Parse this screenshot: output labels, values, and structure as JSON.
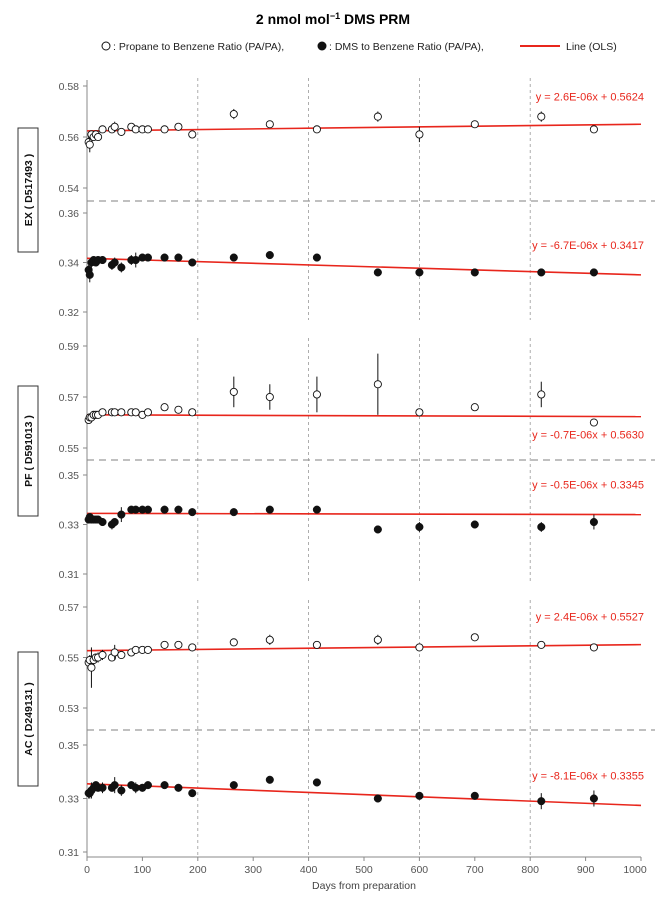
{
  "title_main": "2 nmol mol",
  "title_sup": "−1",
  "title_rest": " DMS PRM",
  "legend": {
    "open_label": ": Propane to Benzene Ratio (PA/PA),",
    "filled_label": ": DMS to Benzene Ratio (PA/PA),",
    "line_label": "Line (OLS)"
  },
  "colors": {
    "fit": "#e8261c",
    "axis": "#888888",
    "grid": "#999999",
    "marker": "#111111"
  },
  "xlabel": "Days from preparation",
  "x_ticks": [
    "0",
    "100",
    "200",
    "300",
    "400",
    "500",
    "600",
    "700",
    "800",
    "900",
    "1000"
  ],
  "chart_data": {
    "type": "scatter",
    "xlim": [
      0,
      1000
    ],
    "x_gridlines": [
      200,
      400,
      600,
      800
    ],
    "groups": [
      {
        "label": "EX ( D517493 )",
        "upper": {
          "marker": "open",
          "ylim": [
            0.54,
            0.58
          ],
          "yticks": [
            "0.58",
            "0.56",
            "0.54"
          ],
          "equation": "y = 2.6E-06x + 0.5624",
          "fit": {
            "slope": 2.6e-06,
            "intercept": 0.5624
          },
          "points": [
            [
              3,
              0.558
            ],
            [
              5,
              0.557
            ],
            [
              8,
              0.561
            ],
            [
              12,
              0.56
            ],
            [
              16,
              0.561
            ],
            [
              20,
              0.56
            ],
            [
              28,
              0.563
            ],
            [
              45,
              0.563
            ],
            [
              50,
              0.564
            ],
            [
              62,
              0.562
            ],
            [
              80,
              0.564
            ],
            [
              88,
              0.563
            ],
            [
              100,
              0.563
            ],
            [
              110,
              0.563
            ],
            [
              140,
              0.563
            ],
            [
              165,
              0.564
            ],
            [
              190,
              0.561
            ],
            [
              265,
              0.569
            ],
            [
              330,
              0.565
            ],
            [
              415,
              0.563
            ],
            [
              525,
              0.568
            ],
            [
              600,
              0.561
            ],
            [
              700,
              0.565
            ],
            [
              820,
              0.568
            ],
            [
              915,
              0.563
            ]
          ],
          "errors": [
            0.002,
            0.003,
            0.001,
            0.001,
            0.001,
            0.001,
            0.001,
            0.001,
            0.002,
            0.001,
            0.001,
            0.001,
            0.001,
            0.001,
            0.001,
            0.001,
            0.001,
            0.002,
            0.001,
            0.001,
            0.002,
            0.003,
            0.001,
            0.002,
            0.001
          ]
        },
        "lower": {
          "marker": "filled",
          "ylim": [
            0.32,
            0.36
          ],
          "yticks": [
            "0.36",
            "0.34",
            "0.32"
          ],
          "equation": "y = -6.7E-06x + 0.3417",
          "fit": {
            "slope": -6.7e-06,
            "intercept": 0.3417
          },
          "points": [
            [
              3,
              0.337
            ],
            [
              5,
              0.335
            ],
            [
              8,
              0.34
            ],
            [
              12,
              0.341
            ],
            [
              16,
              0.34
            ],
            [
              20,
              0.341
            ],
            [
              28,
              0.341
            ],
            [
              45,
              0.339
            ],
            [
              50,
              0.34
            ],
            [
              62,
              0.338
            ],
            [
              80,
              0.341
            ],
            [
              88,
              0.341
            ],
            [
              100,
              0.342
            ],
            [
              110,
              0.342
            ],
            [
              140,
              0.342
            ],
            [
              165,
              0.342
            ],
            [
              190,
              0.34
            ],
            [
              265,
              0.342
            ],
            [
              330,
              0.343
            ],
            [
              415,
              0.342
            ],
            [
              525,
              0.336
            ],
            [
              600,
              0.336
            ],
            [
              700,
              0.336
            ],
            [
              820,
              0.336
            ],
            [
              915,
              0.336
            ]
          ],
          "errors": [
            0.002,
            0.003,
            0.002,
            0.001,
            0.001,
            0.001,
            0.001,
            0.002,
            0.002,
            0.002,
            0.002,
            0.003,
            0.001,
            0.001,
            0.001,
            0.001,
            0.001,
            0.001,
            0.001,
            0.001,
            0.001,
            0.001,
            0.001,
            0.001,
            0.001
          ]
        }
      },
      {
        "label": "PF ( D591013 )",
        "upper": {
          "marker": "open",
          "ylim": [
            0.55,
            0.59
          ],
          "yticks": [
            "0.59",
            "0.57",
            "0.55"
          ],
          "equation": "y = -0.7E-06x + 0.5630",
          "fit": {
            "slope": -7e-07,
            "intercept": 0.563
          },
          "points": [
            [
              3,
              0.561
            ],
            [
              5,
              0.562
            ],
            [
              8,
              0.562
            ],
            [
              12,
              0.563
            ],
            [
              16,
              0.563
            ],
            [
              20,
              0.563
            ],
            [
              28,
              0.564
            ],
            [
              45,
              0.564
            ],
            [
              50,
              0.564
            ],
            [
              62,
              0.564
            ],
            [
              80,
              0.564
            ],
            [
              88,
              0.564
            ],
            [
              100,
              0.563
            ],
            [
              110,
              0.564
            ],
            [
              140,
              0.566
            ],
            [
              165,
              0.565
            ],
            [
              190,
              0.564
            ],
            [
              265,
              0.572
            ],
            [
              330,
              0.57
            ],
            [
              415,
              0.571
            ],
            [
              525,
              0.575
            ],
            [
              600,
              0.564
            ],
            [
              700,
              0.566
            ],
            [
              820,
              0.571
            ],
            [
              915,
              0.56
            ]
          ],
          "errors": [
            0.001,
            0.001,
            0.001,
            0.001,
            0.001,
            0.001,
            0.001,
            0.001,
            0.001,
            0.001,
            0.001,
            0.001,
            0.001,
            0.001,
            0.001,
            0.001,
            0.001,
            0.006,
            0.005,
            0.007,
            0.012,
            0.001,
            0.001,
            0.005,
            0.001
          ]
        },
        "lower": {
          "marker": "filled",
          "ylim": [
            0.31,
            0.35
          ],
          "yticks": [
            "0.35",
            "0.33",
            "0.31"
          ],
          "equation": "y = -0.5E-06x + 0.3345",
          "fit": {
            "slope": -5e-07,
            "intercept": 0.3345
          },
          "points": [
            [
              3,
              0.332
            ],
            [
              5,
              0.333
            ],
            [
              8,
              0.332
            ],
            [
              12,
              0.332
            ],
            [
              16,
              0.332
            ],
            [
              20,
              0.332
            ],
            [
              28,
              0.331
            ],
            [
              45,
              0.33
            ],
            [
              50,
              0.331
            ],
            [
              62,
              0.334
            ],
            [
              80,
              0.336
            ],
            [
              88,
              0.336
            ],
            [
              100,
              0.336
            ],
            [
              110,
              0.336
            ],
            [
              140,
              0.336
            ],
            [
              165,
              0.336
            ],
            [
              190,
              0.335
            ],
            [
              265,
              0.335
            ],
            [
              330,
              0.336
            ],
            [
              415,
              0.336
            ],
            [
              525,
              0.328
            ],
            [
              600,
              0.329
            ],
            [
              700,
              0.33
            ],
            [
              820,
              0.329
            ],
            [
              915,
              0.331
            ]
          ],
          "errors": [
            0.001,
            0.001,
            0.001,
            0.001,
            0.001,
            0.001,
            0.001,
            0.002,
            0.001,
            0.003,
            0.001,
            0.001,
            0.001,
            0.001,
            0.001,
            0.001,
            0.001,
            0.001,
            0.001,
            0.001,
            0.001,
            0.002,
            0.001,
            0.002,
            0.003
          ]
        }
      },
      {
        "label": "AC ( D249131 )",
        "upper": {
          "marker": "open",
          "ylim": [
            0.53,
            0.57
          ],
          "yticks": [
            "0.57",
            "0.55",
            "0.53"
          ],
          "equation": "y = 2.4E-06x + 0.5527",
          "fit": {
            "slope": 2.4e-06,
            "intercept": 0.5527
          },
          "points": [
            [
              3,
              0.548
            ],
            [
              5,
              0.549
            ],
            [
              8,
              0.546
            ],
            [
              12,
              0.549
            ],
            [
              16,
              0.55
            ],
            [
              20,
              0.55
            ],
            [
              28,
              0.551
            ],
            [
              45,
              0.55
            ],
            [
              50,
              0.552
            ],
            [
              62,
              0.551
            ],
            [
              80,
              0.552
            ],
            [
              88,
              0.553
            ],
            [
              100,
              0.553
            ],
            [
              110,
              0.553
            ],
            [
              140,
              0.555
            ],
            [
              165,
              0.555
            ],
            [
              190,
              0.554
            ],
            [
              265,
              0.556
            ],
            [
              330,
              0.557
            ],
            [
              415,
              0.555
            ],
            [
              525,
              0.557
            ],
            [
              600,
              0.554
            ],
            [
              700,
              0.558
            ],
            [
              820,
              0.555
            ],
            [
              915,
              0.554
            ]
          ],
          "errors": [
            0.002,
            0.002,
            0.008,
            0.002,
            0.001,
            0.002,
            0.002,
            0.001,
            0.003,
            0.001,
            0.001,
            0.001,
            0.001,
            0.001,
            0.001,
            0.001,
            0.001,
            0.001,
            0.002,
            0.001,
            0.002,
            0.001,
            0.001,
            0.001,
            0.001
          ]
        },
        "lower": {
          "marker": "filled",
          "ylim": [
            0.31,
            0.35
          ],
          "yticks": [
            "0.35",
            "0.33",
            "0.31"
          ],
          "equation": "y = -8.1E-06x + 0.3355",
          "fit": {
            "slope": -8.1e-06,
            "intercept": 0.3355
          },
          "points": [
            [
              3,
              0.332
            ],
            [
              5,
              0.332
            ],
            [
              8,
              0.333
            ],
            [
              12,
              0.334
            ],
            [
              16,
              0.335
            ],
            [
              20,
              0.334
            ],
            [
              28,
              0.334
            ],
            [
              45,
              0.334
            ],
            [
              50,
              0.335
            ],
            [
              62,
              0.333
            ],
            [
              80,
              0.335
            ],
            [
              88,
              0.334
            ],
            [
              100,
              0.334
            ],
            [
              110,
              0.335
            ],
            [
              140,
              0.335
            ],
            [
              165,
              0.334
            ],
            [
              190,
              0.332
            ],
            [
              265,
              0.335
            ],
            [
              330,
              0.337
            ],
            [
              415,
              0.336
            ],
            [
              525,
              0.33
            ],
            [
              600,
              0.331
            ],
            [
              700,
              0.331
            ],
            [
              820,
              0.329
            ],
            [
              915,
              0.33
            ]
          ],
          "errors": [
            0.002,
            0.002,
            0.003,
            0.002,
            0.001,
            0.001,
            0.002,
            0.001,
            0.003,
            0.002,
            0.001,
            0.002,
            0.001,
            0.001,
            0.001,
            0.001,
            0.001,
            0.001,
            0.001,
            0.001,
            0.001,
            0.001,
            0.001,
            0.003,
            0.003
          ]
        }
      }
    ]
  }
}
